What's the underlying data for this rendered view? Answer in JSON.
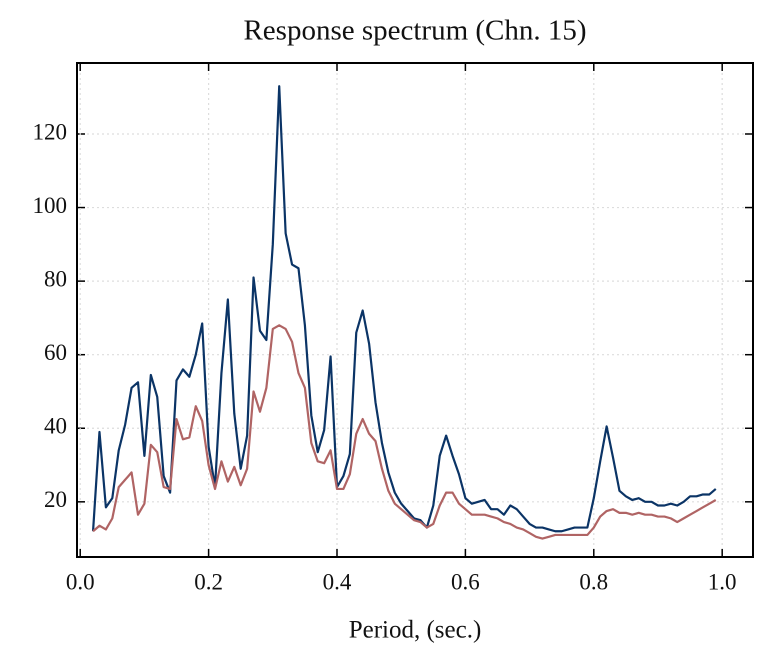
{
  "chart_data": {
    "type": "line",
    "title": "Response spectrum (Chn. 15)",
    "xlabel": "Period, (sec.)",
    "x": [
      0.02,
      0.03,
      0.04,
      0.05,
      0.06,
      0.07,
      0.08,
      0.09,
      0.1,
      0.11,
      0.12,
      0.13,
      0.14,
      0.15,
      0.16,
      0.17,
      0.18,
      0.19,
      0.2,
      0.21,
      0.22,
      0.23,
      0.24,
      0.25,
      0.26,
      0.27,
      0.28,
      0.29,
      0.3,
      0.31,
      0.32,
      0.33,
      0.34,
      0.35,
      0.36,
      0.37,
      0.38,
      0.39,
      0.4,
      0.41,
      0.42,
      0.43,
      0.44,
      0.45,
      0.46,
      0.47,
      0.48,
      0.49,
      0.5,
      0.51,
      0.52,
      0.53,
      0.54,
      0.55,
      0.56,
      0.57,
      0.58,
      0.59,
      0.6,
      0.61,
      0.62,
      0.63,
      0.64,
      0.65,
      0.66,
      0.67,
      0.68,
      0.69,
      0.7,
      0.71,
      0.72,
      0.73,
      0.74,
      0.75,
      0.76,
      0.77,
      0.78,
      0.79,
      0.8,
      0.81,
      0.82,
      0.83,
      0.84,
      0.85,
      0.86,
      0.87,
      0.88,
      0.89,
      0.9,
      0.91,
      0.92,
      0.93,
      0.94,
      0.95,
      0.96,
      0.97,
      0.98,
      0.99
    ],
    "series": [
      {
        "color": "#0b3466",
        "values": [
          12,
          39,
          18.5,
          21,
          34,
          41,
          51,
          52.5,
          32.5,
          54.5,
          48.5,
          27,
          22.5,
          53,
          56,
          54,
          60,
          68.5,
          35,
          24,
          55,
          75,
          44,
          29,
          38,
          81,
          66.5,
          64,
          90,
          133,
          93,
          84.5,
          83.5,
          68,
          43.5,
          33.5,
          39.5,
          59.5,
          24,
          27,
          33,
          66,
          72,
          63,
          47,
          36,
          28,
          22.5,
          19.5,
          17.5,
          15.5,
          15,
          13,
          19,
          32.5,
          38,
          32.5,
          27.5,
          21,
          19.5,
          20,
          20.5,
          18,
          18,
          16.5,
          19,
          18,
          16,
          14,
          13,
          13,
          12.5,
          12,
          12,
          12.5,
          13,
          13,
          13,
          21,
          31,
          40.5,
          32,
          23,
          21.5,
          20.5,
          21,
          20,
          20,
          19,
          19,
          19.5,
          19,
          20,
          21.5,
          21.5,
          22,
          22,
          23.5
        ]
      },
      {
        "color": "#b06464",
        "values": [
          12,
          13.5,
          12.5,
          15.5,
          24,
          26,
          28,
          16.5,
          19.5,
          35.5,
          33.5,
          24,
          23.5,
          42.5,
          37,
          37.5,
          46,
          42,
          30,
          23.5,
          31,
          25.5,
          29.5,
          24.5,
          29,
          50,
          44.5,
          51,
          67,
          68,
          67,
          63.5,
          55,
          51,
          36,
          31,
          30.5,
          34,
          23.5,
          23.5,
          27.5,
          38.5,
          42.5,
          38.5,
          36.5,
          29,
          23,
          19.5,
          18,
          16.5,
          15,
          14.5,
          13,
          14,
          19,
          22.5,
          22.5,
          19.5,
          18,
          16.5,
          16.5,
          16.5,
          16,
          15.5,
          14.5,
          14,
          13,
          12.5,
          11.5,
          10.5,
          10,
          10.5,
          11,
          11,
          11,
          11,
          11,
          11,
          13,
          16,
          17.5,
          18,
          17,
          17,
          16.5,
          17,
          16.5,
          16.5,
          16,
          16,
          15.5,
          14.5,
          15.5,
          16.5,
          17.5,
          18.5,
          19.5,
          20.5
        ]
      }
    ],
    "xlim": [
      -0.005,
      1.048
    ],
    "ylim": [
      5,
      139.3
    ],
    "xticks": [
      {
        "value": 0,
        "label": "0.0"
      },
      0.2,
      0.4,
      0.6,
      0.8,
      {
        "value": 1,
        "label": "1.0"
      }
    ],
    "yticks": [
      20,
      40,
      60,
      80,
      100,
      120
    ],
    "grid": true
  }
}
